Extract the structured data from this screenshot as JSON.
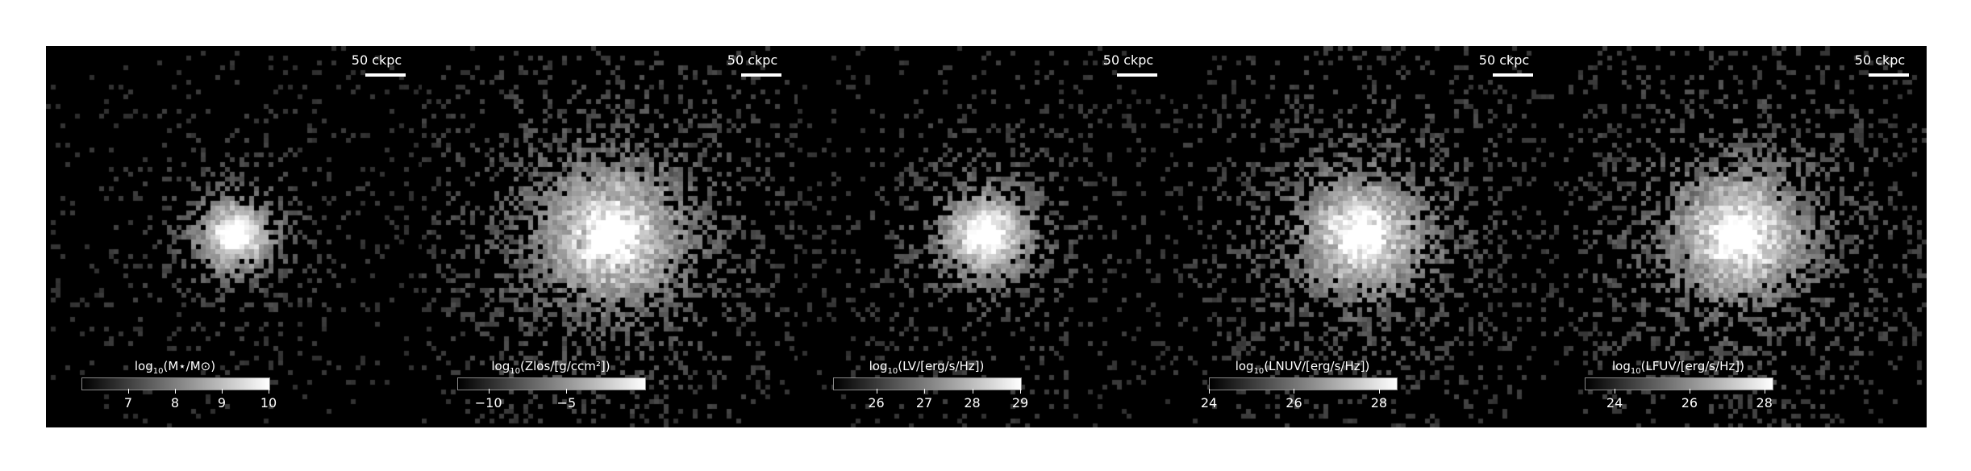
{
  "figure": {
    "panels": [
      {
        "id": "stellar-mass",
        "scalebar": "50 ckpc",
        "colorbar": {
          "title_pre": "log",
          "title_sub": "10",
          "title_post": "(M⋆/M⊙)",
          "ticks": [
            "7",
            "8",
            "9",
            "10"
          ],
          "range": [
            6.0,
            10.0
          ],
          "tick_values": [
            7,
            8,
            9,
            10
          ]
        },
        "texture": {
          "core": 1.0,
          "spread": 55,
          "halo": 0.25,
          "fill": 0.55
        }
      },
      {
        "id": "metal-column",
        "scalebar": "50 ckpc",
        "colorbar": {
          "title_pre": "log",
          "title_sub": "10",
          "title_post": "(Zlos/[g/ccm²])",
          "ticks": [
            "−10",
            "−5"
          ],
          "range": [
            -12.0,
            0.0
          ],
          "tick_values": [
            -10,
            -5
          ]
        },
        "texture": {
          "core": 0.95,
          "spread": 85,
          "halo": 0.55,
          "fill": 0.75
        }
      },
      {
        "id": "v-band",
        "scalebar": "50 ckpc",
        "colorbar": {
          "title_pre": "log",
          "title_sub": "10",
          "title_post": "(LV/[erg/s/Hz])",
          "ticks": [
            "26",
            "27",
            "28",
            "29"
          ],
          "range": [
            25.1,
            29.0
          ],
          "tick_values": [
            26,
            27,
            28,
            29
          ]
        },
        "texture": {
          "core": 1.0,
          "spread": 62,
          "halo": 0.35,
          "fill": 0.6
        }
      },
      {
        "id": "nuv-band",
        "scalebar": "50 ckpc",
        "colorbar": {
          "title_pre": "log",
          "title_sub": "10",
          "title_post": "(LNUV/[erg/s/Hz])",
          "ticks": [
            "24",
            "26",
            "28"
          ],
          "range": [
            24.0,
            28.4
          ],
          "tick_values": [
            24,
            26,
            28
          ]
        },
        "texture": {
          "core": 0.9,
          "spread": 75,
          "halo": 0.5,
          "fill": 0.7
        }
      },
      {
        "id": "fuv-band",
        "scalebar": "50 ckpc",
        "colorbar": {
          "title_pre": "log",
          "title_sub": "10",
          "title_post": "(LFUV/[erg/s/Hz])",
          "ticks": [
            "24",
            "26",
            "28"
          ],
          "range": [
            23.2,
            28.2
          ],
          "tick_values": [
            24,
            26,
            28
          ]
        },
        "texture": {
          "core": 0.85,
          "spread": 78,
          "halo": 0.55,
          "fill": 0.72
        }
      }
    ]
  }
}
